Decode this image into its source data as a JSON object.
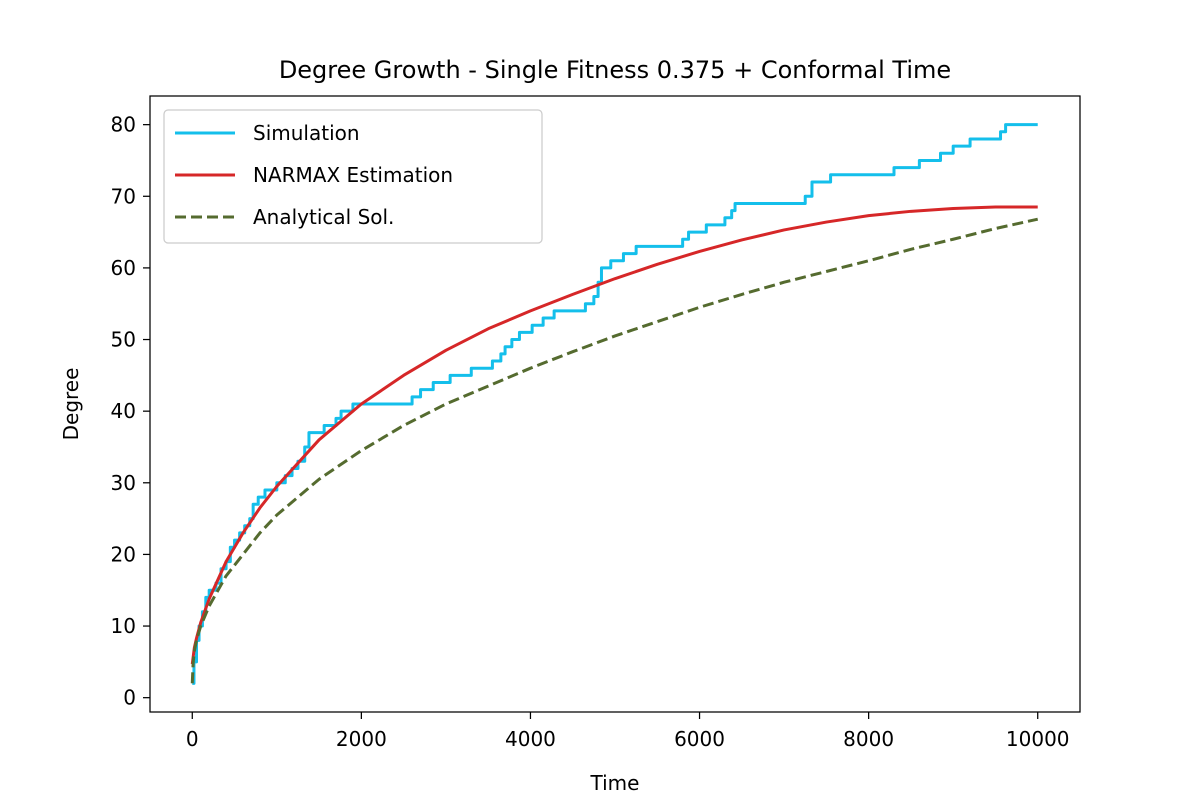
{
  "chart_data": {
    "type": "line",
    "title": "Degree Growth - Single Fitness 0.375 + Conformal Time",
    "xlabel": "Time",
    "ylabel": "Degree",
    "xlim": [
      -500,
      10500
    ],
    "ylim": [
      -2,
      84
    ],
    "xticks": [
      0,
      2000,
      4000,
      6000,
      8000,
      10000
    ],
    "yticks": [
      0,
      10,
      20,
      30,
      40,
      50,
      60,
      70,
      80
    ],
    "grid": false,
    "legend_position": "top-left",
    "series": [
      {
        "name": "Simulation",
        "color": "#14bfeb",
        "style": "solid",
        "step": true,
        "points": [
          [
            0,
            2
          ],
          [
            20,
            5
          ],
          [
            50,
            8
          ],
          [
            80,
            10
          ],
          [
            120,
            12
          ],
          [
            160,
            14
          ],
          [
            200,
            15
          ],
          [
            280,
            16
          ],
          [
            340,
            18
          ],
          [
            400,
            19
          ],
          [
            450,
            21
          ],
          [
            500,
            22
          ],
          [
            560,
            23
          ],
          [
            620,
            24
          ],
          [
            680,
            25
          ],
          [
            720,
            27
          ],
          [
            780,
            28
          ],
          [
            860,
            29
          ],
          [
            1000,
            30
          ],
          [
            1100,
            31
          ],
          [
            1180,
            32
          ],
          [
            1250,
            33
          ],
          [
            1330,
            35
          ],
          [
            1380,
            37
          ],
          [
            1560,
            38
          ],
          [
            1700,
            39
          ],
          [
            1760,
            40
          ],
          [
            1900,
            41
          ],
          [
            2600,
            42
          ],
          [
            2700,
            43
          ],
          [
            2850,
            44
          ],
          [
            3050,
            45
          ],
          [
            3300,
            46
          ],
          [
            3550,
            47
          ],
          [
            3650,
            48
          ],
          [
            3700,
            49
          ],
          [
            3780,
            50
          ],
          [
            3870,
            51
          ],
          [
            4020,
            52
          ],
          [
            4150,
            53
          ],
          [
            4280,
            54
          ],
          [
            4650,
            55
          ],
          [
            4750,
            56
          ],
          [
            4800,
            58
          ],
          [
            4840,
            60
          ],
          [
            4950,
            61
          ],
          [
            5100,
            62
          ],
          [
            5250,
            63
          ],
          [
            5800,
            64
          ],
          [
            5870,
            65
          ],
          [
            6080,
            66
          ],
          [
            6300,
            67
          ],
          [
            6380,
            68
          ],
          [
            6420,
            69
          ],
          [
            7250,
            70
          ],
          [
            7330,
            72
          ],
          [
            7550,
            73
          ],
          [
            8300,
            74
          ],
          [
            8600,
            75
          ],
          [
            8850,
            76
          ],
          [
            9000,
            77
          ],
          [
            9200,
            78
          ],
          [
            9560,
            79
          ],
          [
            9620,
            80
          ],
          [
            10000,
            80
          ]
        ]
      },
      {
        "name": "NARMAX Estimation",
        "color": "#d62728",
        "style": "solid",
        "step": false,
        "points": [
          [
            0,
            4.7
          ],
          [
            25,
            7
          ],
          [
            50,
            8.3
          ],
          [
            100,
            10.5
          ],
          [
            200,
            13.8
          ],
          [
            400,
            19
          ],
          [
            600,
            23
          ],
          [
            800,
            26.5
          ],
          [
            1000,
            29.5
          ],
          [
            1500,
            36
          ],
          [
            2000,
            41
          ],
          [
            2500,
            45
          ],
          [
            3000,
            48.5
          ],
          [
            3500,
            51.5
          ],
          [
            4000,
            54
          ],
          [
            4500,
            56.3
          ],
          [
            5000,
            58.5
          ],
          [
            5500,
            60.5
          ],
          [
            6000,
            62.3
          ],
          [
            6500,
            63.9
          ],
          [
            7000,
            65.3
          ],
          [
            7500,
            66.4
          ],
          [
            8000,
            67.3
          ],
          [
            8500,
            67.9
          ],
          [
            9000,
            68.3
          ],
          [
            9500,
            68.5
          ],
          [
            10000,
            68.5
          ]
        ]
      },
      {
        "name": "Analytical Sol.",
        "color": "#556b2f",
        "style": "dashed",
        "step": false,
        "points": [
          [
            0,
            2
          ],
          [
            10,
            4.8
          ],
          [
            25,
            6.5
          ],
          [
            50,
            8
          ],
          [
            100,
            10
          ],
          [
            200,
            12.8
          ],
          [
            400,
            17
          ],
          [
            600,
            20
          ],
          [
            800,
            23
          ],
          [
            1000,
            25.5
          ],
          [
            1500,
            30.5
          ],
          [
            2000,
            34.5
          ],
          [
            2500,
            38
          ],
          [
            3000,
            41
          ],
          [
            3500,
            43.5
          ],
          [
            4000,
            46
          ],
          [
            4500,
            48.3
          ],
          [
            5000,
            50.5
          ],
          [
            5500,
            52.5
          ],
          [
            6000,
            54.5
          ],
          [
            6500,
            56.3
          ],
          [
            7000,
            58
          ],
          [
            7500,
            59.5
          ],
          [
            8000,
            61
          ],
          [
            8500,
            62.6
          ],
          [
            9000,
            64
          ],
          [
            9500,
            65.5
          ],
          [
            10000,
            66.8
          ]
        ]
      }
    ]
  }
}
